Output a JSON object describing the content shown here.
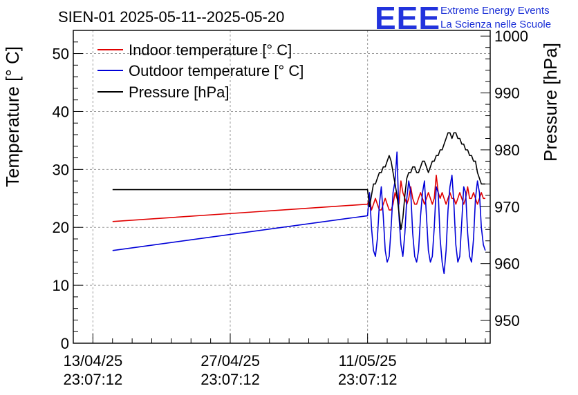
{
  "chart_data": {
    "type": "line",
    "title": "SIEN-01 2025-05-11--2025-05-20",
    "logo": {
      "text": "EEE",
      "line1": "Extreme Energy Events",
      "line2": "La Scienza nelle Scuole"
    },
    "x_ticks": [
      {
        "day": 0,
        "date": "13/04/25",
        "time": "23:07:12"
      },
      {
        "day": 14,
        "date": "27/04/25",
        "time": "23:07:12"
      },
      {
        "day": 28,
        "date": "11/05/25",
        "time": "23:07:12"
      }
    ],
    "x_range": [
      -2.0,
      40.5
    ],
    "y_left": {
      "label": "Temperature [° C]",
      "range": [
        0,
        54
      ],
      "ticks": [
        0,
        10,
        20,
        30,
        40,
        50
      ]
    },
    "y_right": {
      "label": "Pressure [hPa]",
      "range": [
        946,
        1001
      ],
      "ticks": [
        950,
        960,
        970,
        980,
        990,
        1000
      ]
    },
    "legend": {
      "position": "top-left"
    },
    "series": [
      {
        "name": "Indoor temperature [° C]",
        "axis": "left",
        "color": "#e00000",
        "x": [
          2.0,
          28.0,
          28.2,
          28.4,
          28.6,
          28.8,
          29.0,
          29.2,
          29.4,
          29.6,
          29.8,
          30.0,
          30.2,
          30.4,
          30.6,
          30.8,
          31.0,
          31.2,
          31.4,
          31.6,
          31.8,
          32.0,
          32.2,
          32.4,
          32.6,
          32.8,
          33.0,
          33.2,
          33.4,
          33.6,
          33.8,
          34.0,
          34.2,
          34.4,
          34.6,
          34.8,
          35.0,
          35.2,
          35.4,
          35.6,
          35.8,
          36.0,
          36.2,
          36.4,
          36.6,
          36.8,
          37.0,
          37.2,
          37.4,
          37.6,
          37.8,
          38.0,
          38.2,
          38.4,
          38.6,
          38.8,
          39.0,
          39.2,
          39.4,
          39.6,
          39.8,
          40.0
        ],
        "y": [
          21.0,
          24.0,
          25.0,
          23.0,
          24.0,
          25.0,
          24.0,
          23.0,
          23.0,
          24.0,
          25.0,
          24.0,
          23.0,
          23.0,
          24.0,
          26.0,
          25.0,
          24.0,
          28.0,
          26.0,
          25.0,
          24.0,
          25.0,
          27.0,
          25.0,
          24.0,
          24.0,
          25.0,
          26.0,
          25.0,
          24.0,
          25.0,
          26.0,
          25.0,
          24.0,
          25.0,
          29.0,
          26.0,
          25.0,
          26.0,
          25.0,
          24.0,
          25.0,
          26.0,
          25.0,
          25.0,
          24.0,
          25.0,
          26.0,
          25.0,
          24.0,
          25.0,
          27.0,
          25.0,
          25.0,
          26.0,
          25.0,
          24.0,
          25.0,
          26.0,
          25.0,
          25.0
        ]
      },
      {
        "name": "Outdoor temperature [° C]",
        "axis": "left",
        "color": "#0000d8",
        "x": [
          2.0,
          28.0,
          28.2,
          28.4,
          28.6,
          28.8,
          29.0,
          29.2,
          29.4,
          29.6,
          29.8,
          30.0,
          30.2,
          30.4,
          30.6,
          30.8,
          31.0,
          31.2,
          31.4,
          31.6,
          31.8,
          32.0,
          32.2,
          32.4,
          32.6,
          32.8,
          33.0,
          33.2,
          33.4,
          33.6,
          33.8,
          34.0,
          34.2,
          34.4,
          34.6,
          34.8,
          35.0,
          35.2,
          35.4,
          35.6,
          35.8,
          36.0,
          36.2,
          36.4,
          36.6,
          36.8,
          37.0,
          37.2,
          37.4,
          37.6,
          37.8,
          38.0,
          38.2,
          38.4,
          38.6,
          38.8,
          39.0,
          39.2,
          39.4,
          39.6,
          39.8,
          40.0
        ],
        "y": [
          16.0,
          22.0,
          26.0,
          20.0,
          16.0,
          15.0,
          18.0,
          24.0,
          27.0,
          22.0,
          16.0,
          14.0,
          15.0,
          20.0,
          26.0,
          28.0,
          33.0,
          22.0,
          17.0,
          15.0,
          19.0,
          25.0,
          28.0,
          26.0,
          19.0,
          15.0,
          14.0,
          16.0,
          22.0,
          26.0,
          28.0,
          22.0,
          16.0,
          14.0,
          15.0,
          20.0,
          27.0,
          26.0,
          18.0,
          14.0,
          12.0,
          16.0,
          23.0,
          27.0,
          29.0,
          24.0,
          17.0,
          14.0,
          15.0,
          21.0,
          27.0,
          26.0,
          19.0,
          15.0,
          14.0,
          18.0,
          25.0,
          28.0,
          26.0,
          20.0,
          17.0,
          16.0
        ]
      },
      {
        "name": "Pressure [hPa]",
        "axis": "right",
        "color": "#000000",
        "x": [
          2.0,
          28.0,
          28.2,
          28.4,
          28.6,
          28.8,
          29.0,
          29.2,
          29.4,
          29.6,
          29.8,
          30.0,
          30.2,
          30.4,
          30.6,
          30.8,
          31.0,
          31.2,
          31.4,
          31.6,
          31.8,
          32.0,
          32.2,
          32.4,
          32.6,
          32.8,
          33.0,
          33.2,
          33.4,
          33.6,
          33.8,
          34.0,
          34.2,
          34.4,
          34.6,
          34.8,
          35.0,
          35.2,
          35.4,
          35.6,
          35.8,
          36.0,
          36.2,
          36.4,
          36.6,
          36.8,
          37.0,
          37.2,
          37.4,
          37.6,
          37.8,
          38.0,
          38.2,
          38.4,
          38.6,
          38.8,
          39.0,
          39.2,
          39.4,
          39.6,
          39.8,
          40.0
        ],
        "y": [
          973.0,
          973.0,
          970.0,
          972.0,
          974.0,
          974.0,
          975.0,
          976.0,
          976.0,
          977.0,
          977.0,
          978.0,
          979.0,
          978.0,
          976.0,
          974.0,
          972.0,
          969.0,
          966.0,
          968.0,
          972.0,
          975.0,
          976.0,
          976.0,
          977.0,
          977.0,
          976.0,
          976.0,
          977.0,
          978.0,
          978.0,
          977.0,
          976.0,
          977.0,
          978.0,
          978.0,
          979.0,
          979.0,
          980.0,
          980.0,
          981.0,
          982.0,
          983.0,
          983.0,
          982.0,
          983.0,
          983.0,
          982.0,
          982.0,
          981.0,
          981.0,
          980.0,
          980.0,
          979.0,
          979.0,
          978.0,
          978.0,
          976.0,
          975.0,
          974.0,
          974.0,
          974.0
        ]
      }
    ]
  }
}
